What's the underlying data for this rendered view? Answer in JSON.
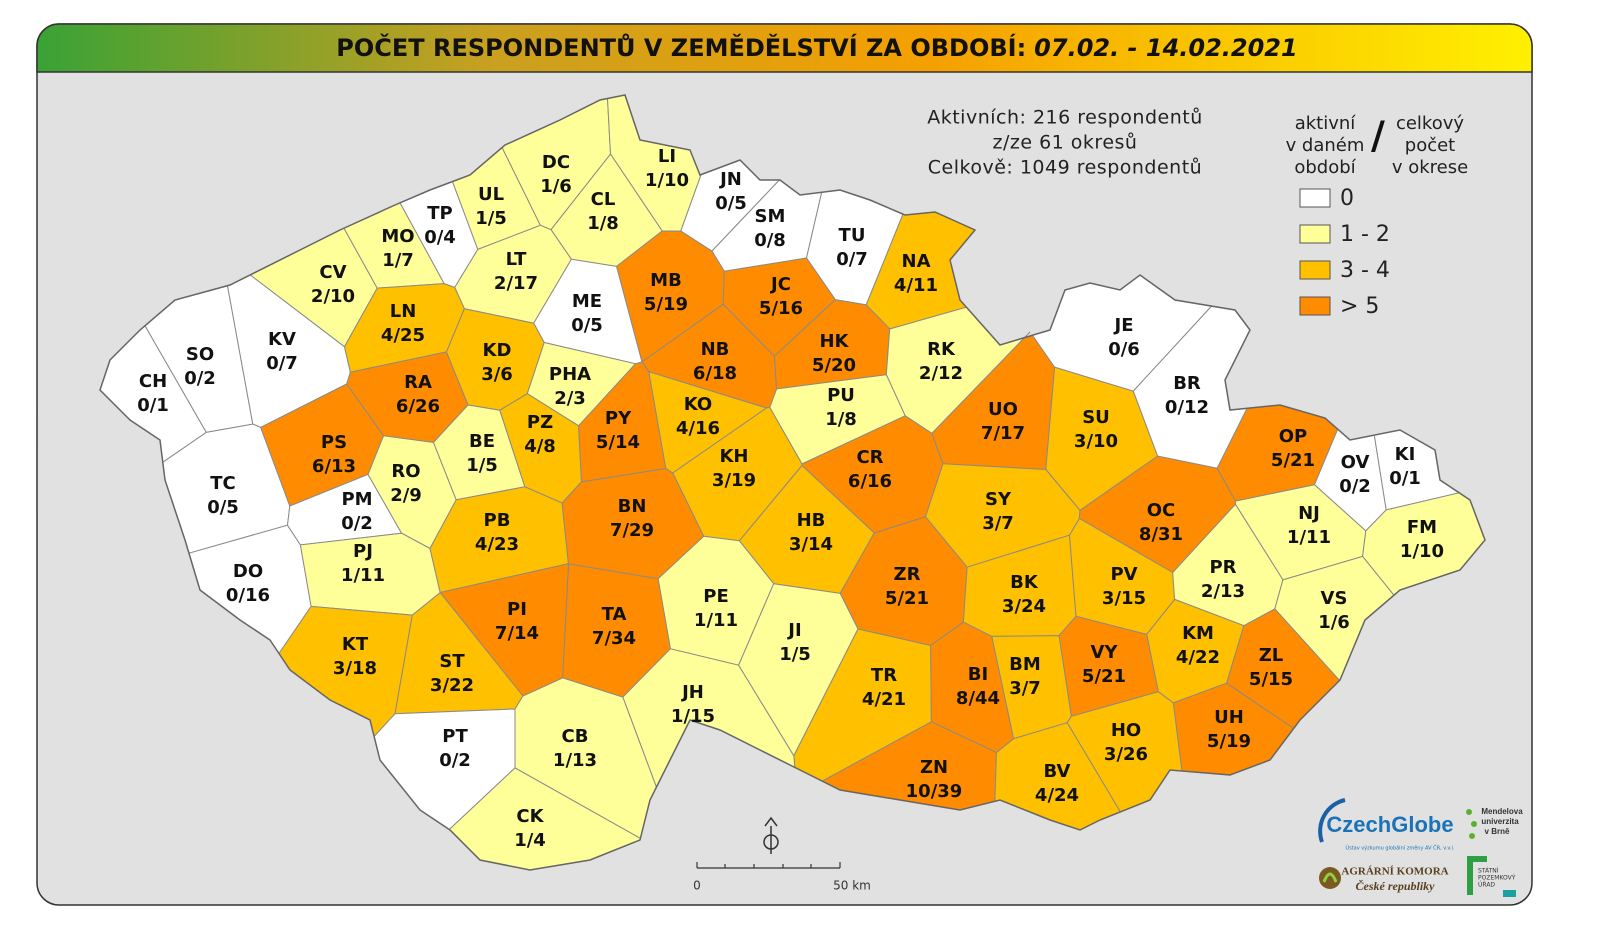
{
  "title": {
    "main": "POČET RESPONDENTŮ V ZEMĚDĚLSTVÍ ZA OBDOBÍ:",
    "period": "07.02. - 14.02.2021"
  },
  "summary": [
    "Aktivních: 216 respondentů",
    "z/ze 61 okresů",
    "Celkově: 1049 respondentů"
  ],
  "legend": {
    "left": [
      "aktivní",
      "v daném",
      "období"
    ],
    "separator": "/",
    "right": [
      "celkový",
      "počet",
      "v okrese"
    ],
    "items": [
      {
        "label": "0",
        "color": "#ffffff"
      },
      {
        "label": "1 - 2",
        "color": "#ffff99"
      },
      {
        "label": "3 - 4",
        "color": "#ffc000"
      },
      {
        "label": "> 5",
        "color": "#ff8c00"
      }
    ]
  },
  "districts": [
    {
      "code": "CH",
      "count": "0/1"
    },
    {
      "code": "SO",
      "count": "0/2"
    },
    {
      "code": "KV",
      "count": "0/7"
    },
    {
      "code": "TC",
      "count": "0/5"
    },
    {
      "code": "DO",
      "count": "0/16"
    },
    {
      "code": "PS",
      "count": "6/13"
    },
    {
      "code": "PM",
      "count": "0/2"
    },
    {
      "code": "RO",
      "count": "2/9"
    },
    {
      "code": "PJ",
      "count": "1/11"
    },
    {
      "code": "KT",
      "count": "3/18"
    },
    {
      "code": "CV",
      "count": "2/10"
    },
    {
      "code": "MO",
      "count": "1/7"
    },
    {
      "code": "TP",
      "count": "0/4"
    },
    {
      "code": "UL",
      "count": "1/5"
    },
    {
      "code": "DC",
      "count": "1/6"
    },
    {
      "code": "LI",
      "count": "1/10"
    },
    {
      "code": "JN",
      "count": "0/5"
    },
    {
      "code": "CL",
      "count": "1/8"
    },
    {
      "code": "LT",
      "count": "2/17"
    },
    {
      "code": "SM",
      "count": "0/8"
    },
    {
      "code": "TU",
      "count": "0/7"
    },
    {
      "code": "NA",
      "count": "4/11"
    },
    {
      "code": "LN",
      "count": "4/25"
    },
    {
      "code": "ME",
      "count": "0/5"
    },
    {
      "code": "MB",
      "count": "5/19"
    },
    {
      "code": "JC",
      "count": "5/16"
    },
    {
      "code": "RA",
      "count": "6/26"
    },
    {
      "code": "KD",
      "count": "3/6"
    },
    {
      "code": "PHA",
      "count": "2/3"
    },
    {
      "code": "NB",
      "count": "6/18"
    },
    {
      "code": "HK",
      "count": "5/20"
    },
    {
      "code": "RK",
      "count": "2/12"
    },
    {
      "code": "BE",
      "count": "1/5"
    },
    {
      "code": "PZ",
      "count": "4/8"
    },
    {
      "code": "PY",
      "count": "5/14"
    },
    {
      "code": "KO",
      "count": "4/16"
    },
    {
      "code": "PU",
      "count": "1/8"
    },
    {
      "code": "KH",
      "count": "3/19"
    },
    {
      "code": "CR",
      "count": "6/16"
    },
    {
      "code": "UO",
      "count": "7/17"
    },
    {
      "code": "SU",
      "count": "3/10"
    },
    {
      "code": "JE",
      "count": "0/6"
    },
    {
      "code": "BR",
      "count": "0/12"
    },
    {
      "code": "OP",
      "count": "5/21"
    },
    {
      "code": "OV",
      "count": "0/2"
    },
    {
      "code": "KI",
      "count": "0/1"
    },
    {
      "code": "PB",
      "count": "4/23"
    },
    {
      "code": "BN",
      "count": "7/29"
    },
    {
      "code": "HB",
      "count": "3/14"
    },
    {
      "code": "SY",
      "count": "3/7"
    },
    {
      "code": "OC",
      "count": "8/31"
    },
    {
      "code": "NJ",
      "count": "1/11"
    },
    {
      "code": "FM",
      "count": "1/10"
    },
    {
      "code": "PE",
      "count": "1/11"
    },
    {
      "code": "ZR",
      "count": "5/21"
    },
    {
      "code": "BK",
      "count": "3/24"
    },
    {
      "code": "PV",
      "count": "3/15"
    },
    {
      "code": "PR",
      "count": "2/13"
    },
    {
      "code": "VS",
      "count": "1/6"
    },
    {
      "code": "PI",
      "count": "7/14"
    },
    {
      "code": "TA",
      "count": "7/34"
    },
    {
      "code": "JI",
      "count": "1/5"
    },
    {
      "code": "KM",
      "count": "4/22"
    },
    {
      "code": "ZL",
      "count": "5/15"
    },
    {
      "code": "ST",
      "count": "3/22"
    },
    {
      "code": "TR",
      "count": "4/21"
    },
    {
      "code": "BI",
      "count": "8/44"
    },
    {
      "code": "BM",
      "count": "3/7"
    },
    {
      "code": "VY",
      "count": "5/21"
    },
    {
      "code": "JH",
      "count": "1/15"
    },
    {
      "code": "UH",
      "count": "5/19"
    },
    {
      "code": "HO",
      "count": "3/26"
    },
    {
      "code": "PT",
      "count": "0/2"
    },
    {
      "code": "CB",
      "count": "1/13"
    },
    {
      "code": "ZN",
      "count": "10/39"
    },
    {
      "code": "BV",
      "count": "4/24"
    },
    {
      "code": "CK",
      "count": "1/4"
    }
  ],
  "scale": {
    "start": "0",
    "end": "50 km"
  },
  "logos": {
    "czechglobe": "CzechGlobe",
    "czechglobe_sub": "Ústav výzkumu globální změny AV ČR, v.v.i.",
    "mendel": [
      "Mendelova",
      "univerzita",
      "v Brně"
    ],
    "komora": [
      "AGRÁRNÍ KOMORA",
      "České republiky"
    ],
    "spu": [
      "STÁTNÍ",
      "POZEMKOVÝ",
      "ÚŘAD"
    ]
  }
}
